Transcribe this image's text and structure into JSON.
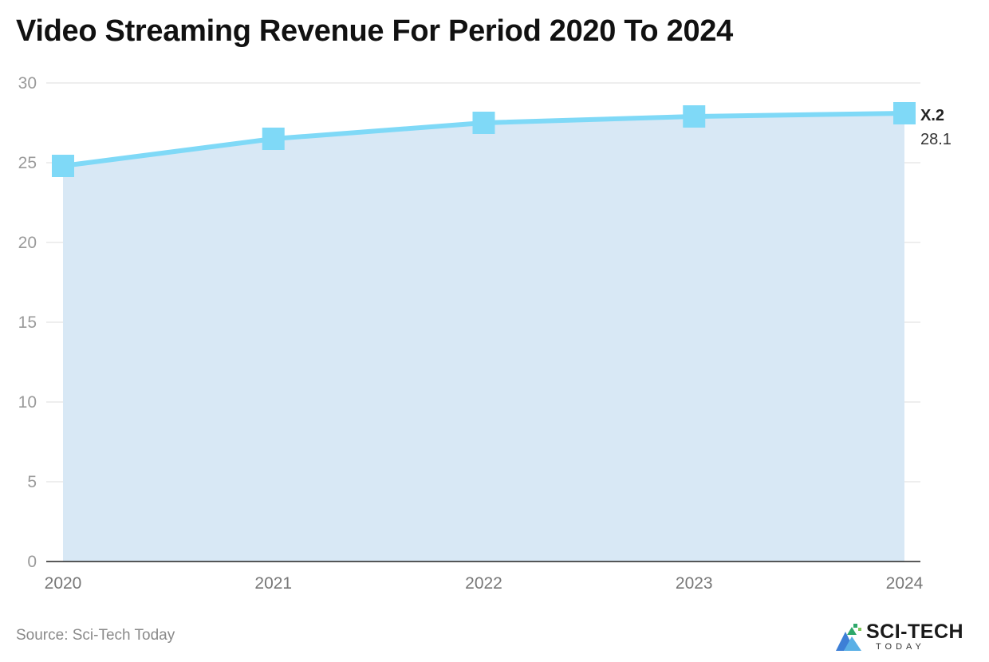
{
  "chart_data": {
    "type": "area",
    "title": "Video Streaming Revenue For Period 2020 To 2024",
    "categories": [
      "2020",
      "2021",
      "2022",
      "2023",
      "2024"
    ],
    "series": [
      {
        "name": "X.2",
        "values": [
          24.8,
          26.5,
          27.5,
          27.9,
          28.1
        ]
      }
    ],
    "annotation": {
      "series_label": "X.2",
      "value_label": "28.1"
    },
    "ylim": [
      0,
      30
    ],
    "yticks": [
      0,
      5,
      10,
      15,
      20,
      25,
      30
    ],
    "grid": true,
    "legend": "none",
    "colors": {
      "line": "#7fd9f7",
      "fill": "#d8e8f5",
      "grid": "#dddddd",
      "axis": "#222222"
    }
  },
  "source_text": "Source: Sci-Tech Today",
  "logo": {
    "name": "SCI-TECH",
    "sub": "TODAY",
    "icon": "sci-tech-logo-icon"
  }
}
